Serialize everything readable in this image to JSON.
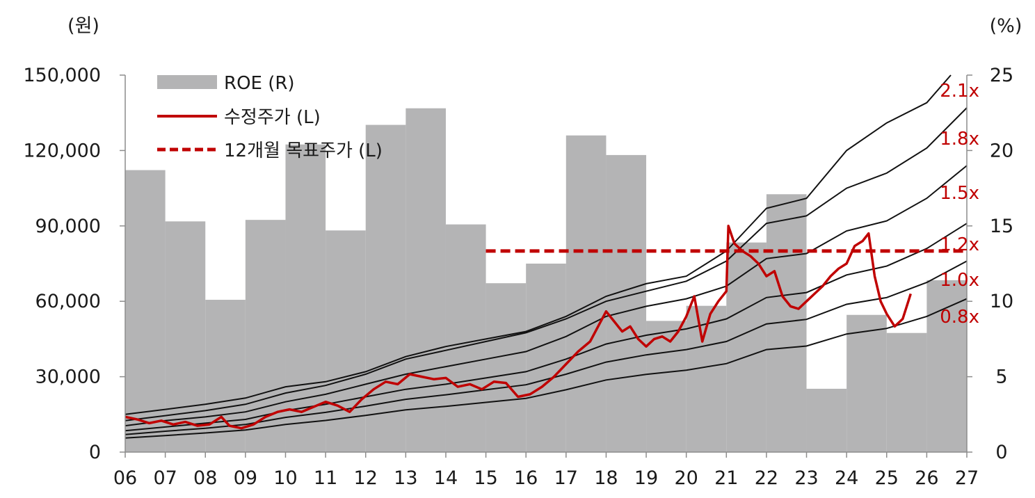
{
  "chart_data": {
    "type": "line",
    "left_axis": {
      "unit": "(원)",
      "ticks": [
        "0",
        "30,000",
        "60,000",
        "90,000",
        "120,000",
        "150,000"
      ],
      "ylim": [
        0,
        150000
      ]
    },
    "right_axis": {
      "unit": "(%)",
      "ticks": [
        "0",
        "5",
        "10",
        "15",
        "20",
        "25"
      ],
      "ylim": [
        0,
        25
      ]
    },
    "x_ticks": [
      "06",
      "07",
      "08",
      "09",
      "10",
      "11",
      "12",
      "13",
      "14",
      "15",
      "16",
      "17",
      "18",
      "19",
      "20",
      "21",
      "22",
      "23",
      "24",
      "25",
      "26",
      "27"
    ],
    "legend": [
      {
        "label": "ROE (R)",
        "style": "gray-box"
      },
      {
        "label": "수정주가 (L)",
        "style": "red-line"
      },
      {
        "label": "12개월 목표주가 (L)",
        "style": "red-dash"
      }
    ],
    "roe": {
      "name": "ROE (R)",
      "color": "#b4b4b5",
      "x": [
        2006,
        2007,
        2008,
        2009,
        2010,
        2011,
        2012,
        2013,
        2014,
        2015,
        2016,
        2017,
        2018,
        2019,
        2020,
        2021,
        2022,
        2023,
        2024,
        2025,
        2026
      ],
      "values": [
        18.7,
        15.3,
        10.1,
        15.4,
        20.4,
        14.7,
        21.7,
        22.8,
        15.1,
        11.2,
        12.5,
        21.0,
        19.7,
        8.7,
        9.7,
        13.9,
        17.1,
        4.2,
        9.1,
        7.9,
        11.4
      ]
    },
    "bands": [
      {
        "label": "2.1x",
        "x": [
          2006,
          2007,
          2008,
          2009,
          2010,
          2011,
          2012,
          2013,
          2014,
          2015,
          2016,
          2017,
          2018,
          2019,
          2020,
          2021,
          2022,
          2023,
          2024,
          2025,
          2026,
          2026.6
        ],
        "values": [
          15000,
          17000,
          19000,
          21500,
          26000,
          28000,
          32000,
          38000,
          42000,
          45000,
          48000,
          54000,
          62000,
          67000,
          70000,
          80000,
          97000,
          101000,
          120000,
          131000,
          139000,
          150000
        ]
      },
      {
        "label": "1.8x",
        "x": [
          2006,
          2007,
          2008,
          2009,
          2010,
          2011,
          2012,
          2013,
          2014,
          2015,
          2016,
          2017,
          2018,
          2019,
          2020,
          2021,
          2022,
          2023,
          2024,
          2025,
          2026,
          2027
        ],
        "values": [
          12500,
          14500,
          16500,
          19000,
          23500,
          26500,
          31000,
          37000,
          40500,
          44000,
          47500,
          53000,
          60000,
          64000,
          68000,
          76000,
          91000,
          94000,
          105000,
          111000,
          121000,
          137000
        ]
      },
      {
        "label": "1.5x",
        "x": [
          2006,
          2007,
          2008,
          2009,
          2010,
          2011,
          2012,
          2013,
          2014,
          2015,
          2016,
          2017,
          2018,
          2019,
          2020,
          2021,
          2022,
          2023,
          2024,
          2025,
          2026,
          2027
        ],
        "values": [
          10500,
          12500,
          14000,
          16000,
          20000,
          23000,
          27000,
          31000,
          34000,
          37000,
          40000,
          46000,
          54000,
          58000,
          61000,
          66000,
          77000,
          79000,
          88000,
          92000,
          101000,
          114000
        ]
      },
      {
        "label": "1.2x",
        "x": [
          2006,
          2007,
          2008,
          2009,
          2010,
          2011,
          2012,
          2013,
          2014,
          2015,
          2016,
          2017,
          2018,
          2019,
          2020,
          2021,
          2022,
          2023,
          2024,
          2025,
          2026,
          2027
        ],
        "values": [
          8500,
          10000,
          11500,
          13000,
          16500,
          19000,
          22000,
          25000,
          27000,
          29500,
          32000,
          37000,
          43000,
          46500,
          49000,
          53000,
          61500,
          63500,
          70500,
          74000,
          81000,
          91000
        ]
      },
      {
        "label": "1.0x",
        "x": [
          2006,
          2007,
          2008,
          2009,
          2010,
          2011,
          2012,
          2013,
          2014,
          2015,
          2016,
          2017,
          2018,
          2019,
          2020,
          2021,
          2022,
          2023,
          2024,
          2025,
          2026,
          2027
        ],
        "values": [
          7000,
          8300,
          9500,
          11000,
          13800,
          15800,
          18300,
          21000,
          22800,
          24800,
          26800,
          31000,
          35800,
          38700,
          40800,
          44000,
          51000,
          52800,
          58800,
          61500,
          67500,
          76000
        ]
      },
      {
        "label": "0.8x",
        "x": [
          2006,
          2007,
          2008,
          2009,
          2010,
          2011,
          2012,
          2013,
          2014,
          2015,
          2016,
          2017,
          2018,
          2019,
          2020,
          2021,
          2022,
          2023,
          2024,
          2025,
          2026,
          2027
        ],
        "values": [
          5600,
          6600,
          7600,
          8800,
          11000,
          12600,
          14600,
          16800,
          18200,
          19800,
          21400,
          24800,
          28700,
          30900,
          32600,
          35200,
          40800,
          42200,
          47000,
          49200,
          54000,
          61000
        ]
      }
    ],
    "price": {
      "name": "수정주가 (L)",
      "color": "#c00000",
      "x": [
        2006.0,
        2006.3,
        2006.6,
        2006.9,
        2007.2,
        2007.5,
        2007.8,
        2008.1,
        2008.4,
        2008.6,
        2008.9,
        2009.2,
        2009.5,
        2009.8,
        2010.1,
        2010.4,
        2010.7,
        2011.0,
        2011.3,
        2011.6,
        2011.9,
        2012.2,
        2012.5,
        2012.8,
        2013.1,
        2013.4,
        2013.7,
        2014.0,
        2014.3,
        2014.6,
        2014.9,
        2015.2,
        2015.5,
        2015.8,
        2016.1,
        2016.4,
        2016.7,
        2017.0,
        2017.3,
        2017.6,
        2017.8,
        2018.0,
        2018.2,
        2018.4,
        2018.6,
        2018.8,
        2019.0,
        2019.2,
        2019.4,
        2019.6,
        2019.8,
        2020.0,
        2020.1,
        2020.2,
        2020.4,
        2020.6,
        2020.8,
        2021.0,
        2021.05,
        2021.2,
        2021.4,
        2021.6,
        2021.8,
        2022.0,
        2022.2,
        2022.4,
        2022.6,
        2022.8,
        2023.0,
        2023.2,
        2023.4,
        2023.6,
        2023.8,
        2024.0,
        2024.2,
        2024.4,
        2024.55,
        2024.7,
        2024.85,
        2025.0,
        2025.2,
        2025.4,
        2025.5,
        2025.6
      ],
      "values": [
        14000,
        13000,
        11500,
        12500,
        11000,
        12000,
        10500,
        11000,
        14000,
        10500,
        9500,
        11000,
        14000,
        16000,
        17000,
        16000,
        18000,
        20000,
        18500,
        16000,
        21000,
        25000,
        28000,
        27000,
        31000,
        30000,
        29000,
        29500,
        26000,
        27000,
        25000,
        28000,
        27500,
        22000,
        23000,
        26000,
        30000,
        35000,
        40000,
        44000,
        50000,
        56000,
        52000,
        48000,
        50000,
        45000,
        42000,
        45000,
        46000,
        44000,
        48000,
        54000,
        58000,
        62000,
        44000,
        55000,
        60000,
        64000,
        90000,
        83000,
        80000,
        78000,
        75000,
        70000,
        72000,
        62000,
        58000,
        57000,
        60000,
        63000,
        66000,
        70000,
        73000,
        75000,
        82000,
        84000,
        87000,
        70000,
        60000,
        55000,
        50000,
        53000,
        58000,
        63000
      ]
    },
    "target": {
      "name": "12개월 목표주가 (L)",
      "color": "#c00000",
      "x": [
        2015.0,
        2027.0
      ],
      "values": [
        80000,
        80000
      ]
    }
  }
}
